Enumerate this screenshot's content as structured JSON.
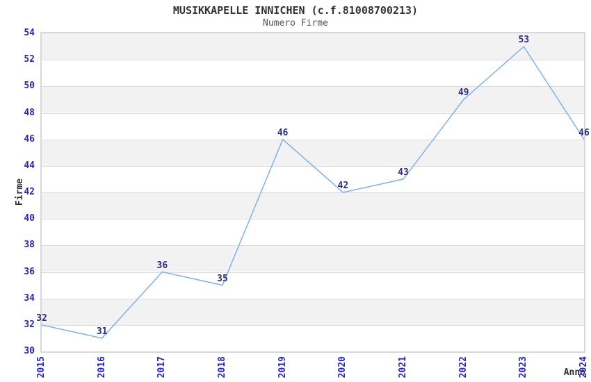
{
  "header": {
    "title": "MUSIKKAPELLE INNICHEN (c.f.81008700213)",
    "subtitle": "Numero Firme"
  },
  "chart_data": {
    "type": "line",
    "title": "MUSIKKAPELLE INNICHEN (c.f.81008700213)",
    "subtitle": "Numero Firme",
    "xlabel": "Anno",
    "ylabel": "Firme",
    "x": [
      "2015",
      "2016",
      "2017",
      "2018",
      "2019",
      "2020",
      "2021",
      "2022",
      "2023",
      "2024"
    ],
    "series": [
      {
        "name": "Numero Firme",
        "values": [
          32,
          31,
          36,
          35,
          46,
          42,
          43,
          49,
          53,
          46
        ]
      }
    ],
    "ylim": [
      30,
      54
    ],
    "ytick_step": 2,
    "grid": "horizontal alternating bands with lines every 2 units",
    "legend_position": "none",
    "show_value_labels": true,
    "colors": {
      "line": "#7db3ea",
      "value_label": "#2b2b8a",
      "tick_label": "#2424cc",
      "axis_label": "#333333",
      "title": "#333333",
      "subtitle": "#555555",
      "band": "#f2f2f2",
      "grid_line": "#dcdcdc",
      "plot_border": "#d8d8d8",
      "background": "#ffffff"
    }
  }
}
